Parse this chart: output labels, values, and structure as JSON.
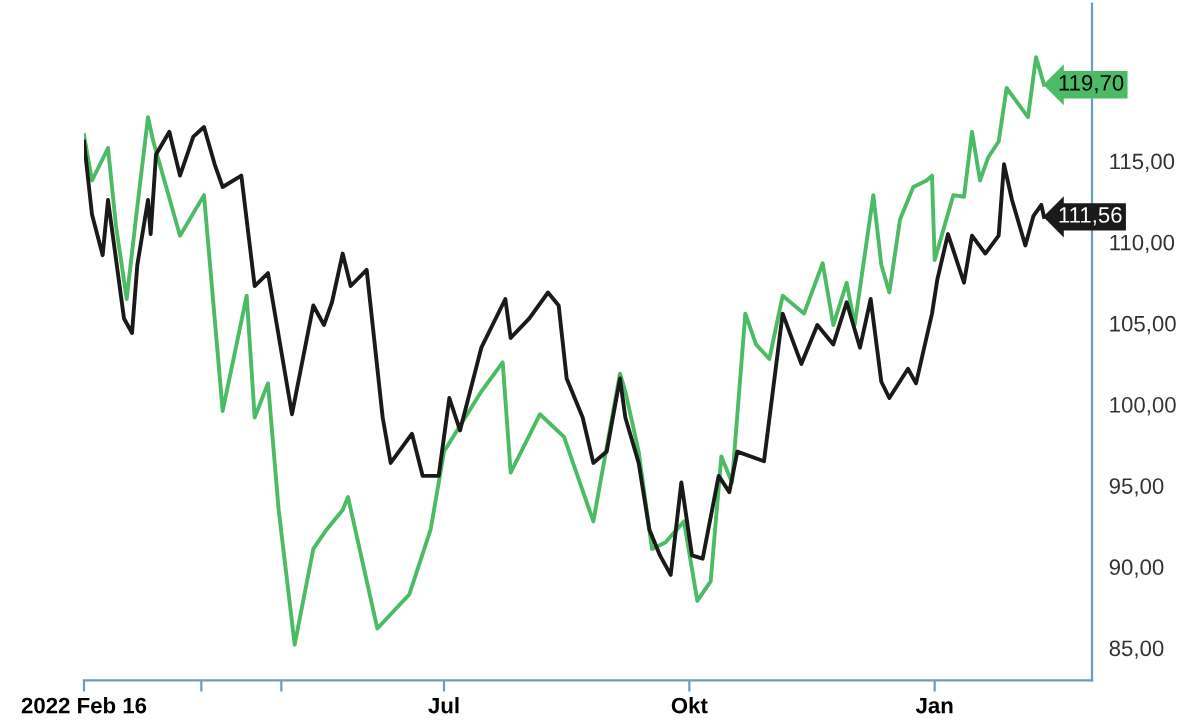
{
  "chart_data": {
    "type": "line",
    "xlim": [
      "2022-02-16",
      "2023-03-01"
    ],
    "xticks": [
      {
        "value": "2022-02-16",
        "label": "2022 Feb 16"
      },
      {
        "value": "2022-04-01",
        "label": null
      },
      {
        "value": "2022-05-01",
        "label": null
      },
      {
        "value": "2022-07-01",
        "label": "Jul"
      },
      {
        "value": "2022-10-01",
        "label": "Okt"
      },
      {
        "value": "2023-01-01",
        "label": "Jan"
      }
    ],
    "ylim": [
      83,
      124.7
    ],
    "yticks": [
      {
        "value": 85,
        "label": "85,00"
      },
      {
        "value": 90,
        "label": "90,00"
      },
      {
        "value": 95,
        "label": "95,00"
      },
      {
        "value": 100,
        "label": "100,00"
      },
      {
        "value": 105,
        "label": "105,00"
      },
      {
        "value": 110,
        "label": "110,00"
      },
      {
        "value": 115,
        "label": "115,00"
      }
    ],
    "grid": false,
    "line_style": "solid",
    "marker": "none",
    "series": [
      {
        "color": "#4cbb66",
        "x": [
          "2022-02-16",
          "2022-02-19",
          "2022-02-25",
          "2022-02-28",
          "2022-03-04",
          "2022-03-08",
          "2022-03-12",
          "2022-03-14",
          "2022-03-24",
          "2022-04-02",
          "2022-04-06",
          "2022-04-09",
          "2022-04-18",
          "2022-04-21",
          "2022-04-26",
          "2022-04-30",
          "2022-05-06",
          "2022-05-13",
          "2022-05-18",
          "2022-05-24",
          "2022-05-26",
          "2022-06-06",
          "2022-06-18",
          "2022-06-26",
          "2022-07-01",
          "2022-07-15",
          "2022-07-23",
          "2022-07-26",
          "2022-08-06",
          "2022-08-15",
          "2022-08-26",
          "2022-09-05",
          "2022-09-07",
          "2022-09-12",
          "2022-09-17",
          "2022-09-22",
          "2022-09-29",
          "2022-10-04",
          "2022-10-09",
          "2022-10-13",
          "2022-10-17",
          "2022-10-22",
          "2022-10-26",
          "2022-10-31",
          "2022-11-05",
          "2022-11-13",
          "2022-11-20",
          "2022-11-24",
          "2022-11-29",
          "2022-12-02",
          "2022-12-09",
          "2022-12-12",
          "2022-12-15",
          "2022-12-19",
          "2022-12-24",
          "2022-12-29",
          "2022-12-31",
          "2023-01-01",
          "2023-01-08",
          "2023-01-12",
          "2023-01-15",
          "2023-01-18",
          "2023-01-21",
          "2023-01-25",
          "2023-01-28",
          "2023-02-01",
          "2023-02-05",
          "2023-02-08",
          "2023-02-11"
        ],
        "values": [
          116.6,
          113.8,
          115.8,
          111.0,
          106.5,
          112.2,
          117.7,
          116.2,
          110.4,
          112.9,
          105.3,
          99.6,
          106.7,
          99.2,
          101.3,
          93.5,
          85.2,
          91.1,
          92.3,
          93.5,
          94.3,
          86.2,
          88.3,
          92.3,
          97.1,
          100.8,
          102.6,
          95.8,
          99.4,
          98.0,
          92.8,
          101.9,
          100.8,
          97.1,
          91.1,
          91.5,
          92.8,
          87.9,
          89.1,
          96.8,
          95.2,
          105.6,
          103.7,
          102.8,
          106.7,
          105.6,
          108.7,
          104.9,
          107.5,
          104.9,
          112.9,
          108.6,
          106.9,
          111.4,
          113.4,
          113.8,
          114.1,
          108.9,
          112.9,
          112.8,
          116.8,
          113.8,
          115.2,
          116.2,
          119.5,
          118.6,
          117.7,
          121.4,
          119.7
        ],
        "value_labels": [
          null,
          null,
          null,
          null,
          null,
          null,
          null,
          null,
          null,
          null,
          null,
          null,
          null,
          null,
          null,
          null,
          null,
          null,
          null,
          null,
          null,
          null,
          null,
          null,
          null,
          null,
          null,
          null,
          null,
          null,
          null,
          null,
          null,
          null,
          null,
          null,
          null,
          null,
          null,
          null,
          null,
          null,
          null,
          null,
          null,
          null,
          null,
          null,
          null,
          null,
          null,
          null,
          null,
          null,
          null,
          null,
          null,
          null,
          null,
          null,
          null,
          null,
          null,
          null,
          null,
          null,
          null,
          null,
          "119,70"
        ]
      },
      {
        "color": "#1a1a1a",
        "x": [
          "2022-02-16",
          "2022-02-19",
          "2022-02-23",
          "2022-02-25",
          "2022-03-03",
          "2022-03-06",
          "2022-03-08",
          "2022-03-12",
          "2022-03-13",
          "2022-03-15",
          "2022-03-20",
          "2022-03-24",
          "2022-03-29",
          "2022-04-02",
          "2022-04-06",
          "2022-04-09",
          "2022-04-16",
          "2022-04-21",
          "2022-04-26",
          "2022-05-05",
          "2022-05-13",
          "2022-05-17",
          "2022-05-20",
          "2022-05-24",
          "2022-05-27",
          "2022-06-02",
          "2022-06-08",
          "2022-06-11",
          "2022-06-19",
          "2022-06-23",
          "2022-06-29",
          "2022-07-03",
          "2022-07-07",
          "2022-07-15",
          "2022-07-24",
          "2022-07-26",
          "2022-08-02",
          "2022-08-09",
          "2022-08-13",
          "2022-08-16",
          "2022-08-22",
          "2022-08-26",
          "2022-08-31",
          "2022-09-05",
          "2022-09-07",
          "2022-09-12",
          "2022-09-16",
          "2022-09-20",
          "2022-09-24",
          "2022-09-28",
          "2022-10-02",
          "2022-10-06",
          "2022-10-12",
          "2022-10-16",
          "2022-10-19",
          "2022-10-29",
          "2022-11-01",
          "2022-11-05",
          "2022-11-12",
          "2022-11-18",
          "2022-11-24",
          "2022-11-29",
          "2022-12-04",
          "2022-12-08",
          "2022-12-12",
          "2022-12-15",
          "2022-12-22",
          "2022-12-25",
          "2022-12-31",
          "2023-01-02",
          "2023-01-06",
          "2023-01-12",
          "2023-01-15",
          "2023-01-20",
          "2023-01-25",
          "2023-01-27",
          "2023-01-30",
          "2023-02-04",
          "2023-02-07",
          "2023-02-10",
          "2023-02-11"
        ],
        "values": [
          116.2,
          111.7,
          109.2,
          112.6,
          105.3,
          104.4,
          108.6,
          112.6,
          110.5,
          115.4,
          116.8,
          114.1,
          116.5,
          117.1,
          114.8,
          113.4,
          114.1,
          107.3,
          108.1,
          99.4,
          106.1,
          104.9,
          106.3,
          109.3,
          107.3,
          108.3,
          99.2,
          96.4,
          98.2,
          95.6,
          95.6,
          100.4,
          98.4,
          103.5,
          106.5,
          104.1,
          105.3,
          106.9,
          106.1,
          101.6,
          99.2,
          96.4,
          97.1,
          101.6,
          99.2,
          96.4,
          92.3,
          90.7,
          89.5,
          95.2,
          90.7,
          90.5,
          95.6,
          94.6,
          97.1,
          96.5,
          100.4,
          105.6,
          102.5,
          104.9,
          103.7,
          106.3,
          103.5,
          106.5,
          101.4,
          100.4,
          102.2,
          101.3,
          105.6,
          107.7,
          110.5,
          107.5,
          110.4,
          109.3,
          110.4,
          114.8,
          112.6,
          109.8,
          111.6,
          112.3,
          111.56
        ],
        "value_labels": [
          null,
          null,
          null,
          null,
          null,
          null,
          null,
          null,
          null,
          null,
          null,
          null,
          null,
          null,
          null,
          null,
          null,
          null,
          null,
          null,
          null,
          null,
          null,
          null,
          null,
          null,
          null,
          null,
          null,
          null,
          null,
          null,
          null,
          null,
          null,
          null,
          null,
          null,
          null,
          null,
          null,
          null,
          null,
          null,
          null,
          null,
          null,
          null,
          null,
          null,
          null,
          null,
          null,
          null,
          null,
          null,
          null,
          null,
          null,
          null,
          null,
          null,
          null,
          null,
          null,
          null,
          null,
          null,
          null,
          null,
          null,
          null,
          null,
          null,
          null,
          null,
          null,
          null,
          null,
          null,
          "111,56"
        ]
      }
    ]
  }
}
